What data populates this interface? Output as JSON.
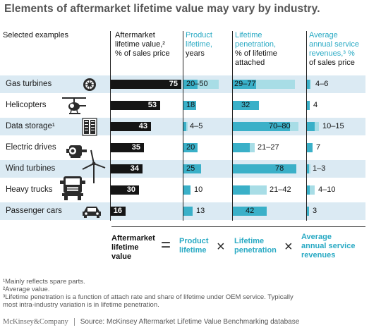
{
  "title": "Elements of aftermarket lifetime value may vary by industry.",
  "headers": {
    "examples": "Selected examples",
    "alv": [
      "Aftermarket",
      "lifetime value,²",
      "% of sales price"
    ],
    "plife": [
      "Product",
      "lifetime,",
      "years"
    ],
    "lpen": [
      "Lifetime",
      "penetration,",
      "% of lifetime",
      "attached"
    ],
    "rev": [
      "Average",
      "annual service",
      "revenues,³ %",
      "of sales price"
    ]
  },
  "chart_data": {
    "type": "table",
    "title": "Elements of aftermarket lifetime value may vary by industry.",
    "categories": [
      "Gas turbines",
      "Helicopters",
      "Data storage¹",
      "Electric drives",
      "Wind turbines",
      "Heavy trucks",
      "Passenger cars"
    ],
    "columns": [
      "Aftermarket lifetime value, % of sales price",
      "Product lifetime, years",
      "Lifetime penetration, % of lifetime attached",
      "Average annual service revenues, % of sales price"
    ],
    "alv_values": [
      75,
      53,
      43,
      35,
      34,
      30,
      16
    ],
    "product_lifetime_labels": [
      "20–50",
      "18",
      "4–5",
      "20",
      "25",
      "10",
      "13"
    ],
    "product_lifetime_range": [
      [
        20,
        50
      ],
      [
        18,
        18
      ],
      [
        4,
        5
      ],
      [
        20,
        20
      ],
      [
        25,
        25
      ],
      [
        10,
        10
      ],
      [
        13,
        13
      ]
    ],
    "penetration_labels": [
      "29–77",
      "32",
      "70–80",
      "21–27",
      "78",
      "21–42",
      "42"
    ],
    "penetration_range": [
      [
        29,
        77
      ],
      [
        32,
        32
      ],
      [
        70,
        80
      ],
      [
        21,
        27
      ],
      [
        78,
        78
      ],
      [
        21,
        42
      ],
      [
        42,
        42
      ]
    ],
    "revenue_labels": [
      "4–6",
      "4",
      "10–15",
      "7",
      "1–3",
      "4–10",
      "3"
    ],
    "revenue_range": [
      [
        4,
        6
      ],
      [
        4,
        4
      ],
      [
        10,
        15
      ],
      [
        7,
        7
      ],
      [
        1,
        3
      ],
      [
        4,
        10
      ],
      [
        3,
        3
      ]
    ],
    "colors": {
      "alv": "#151515",
      "teal": "#3ab0c8",
      "light": "#a8dde6",
      "band": "#dbeaf3"
    }
  },
  "equation": {
    "alv": [
      "Aftermarket",
      "lifetime",
      "value"
    ],
    "equals": "=",
    "plife": [
      "Product",
      "lifetime"
    ],
    "times": "×",
    "lpen": [
      "Lifetime",
      "penetration"
    ],
    "rev": [
      "Average",
      "annual service",
      "revenues"
    ]
  },
  "footnotes": [
    "¹Mainly reflects spare parts.",
    "²Average value.",
    "³Lifetime penetration is a function of attach rate and share of lifetime under OEM service. Typically",
    "most intra-industry variation is in lifetime penetration."
  ],
  "brand": "McKinsey&Company",
  "source": "Source: McKinsey Aftermarket Lifetime Value Benchmarking database",
  "icons": [
    "turbine-icon",
    "helicopter-icon",
    "server-rack-icon",
    "electric-motor-icon",
    "wind-turbine-icon",
    "truck-icon",
    "car-icon"
  ]
}
